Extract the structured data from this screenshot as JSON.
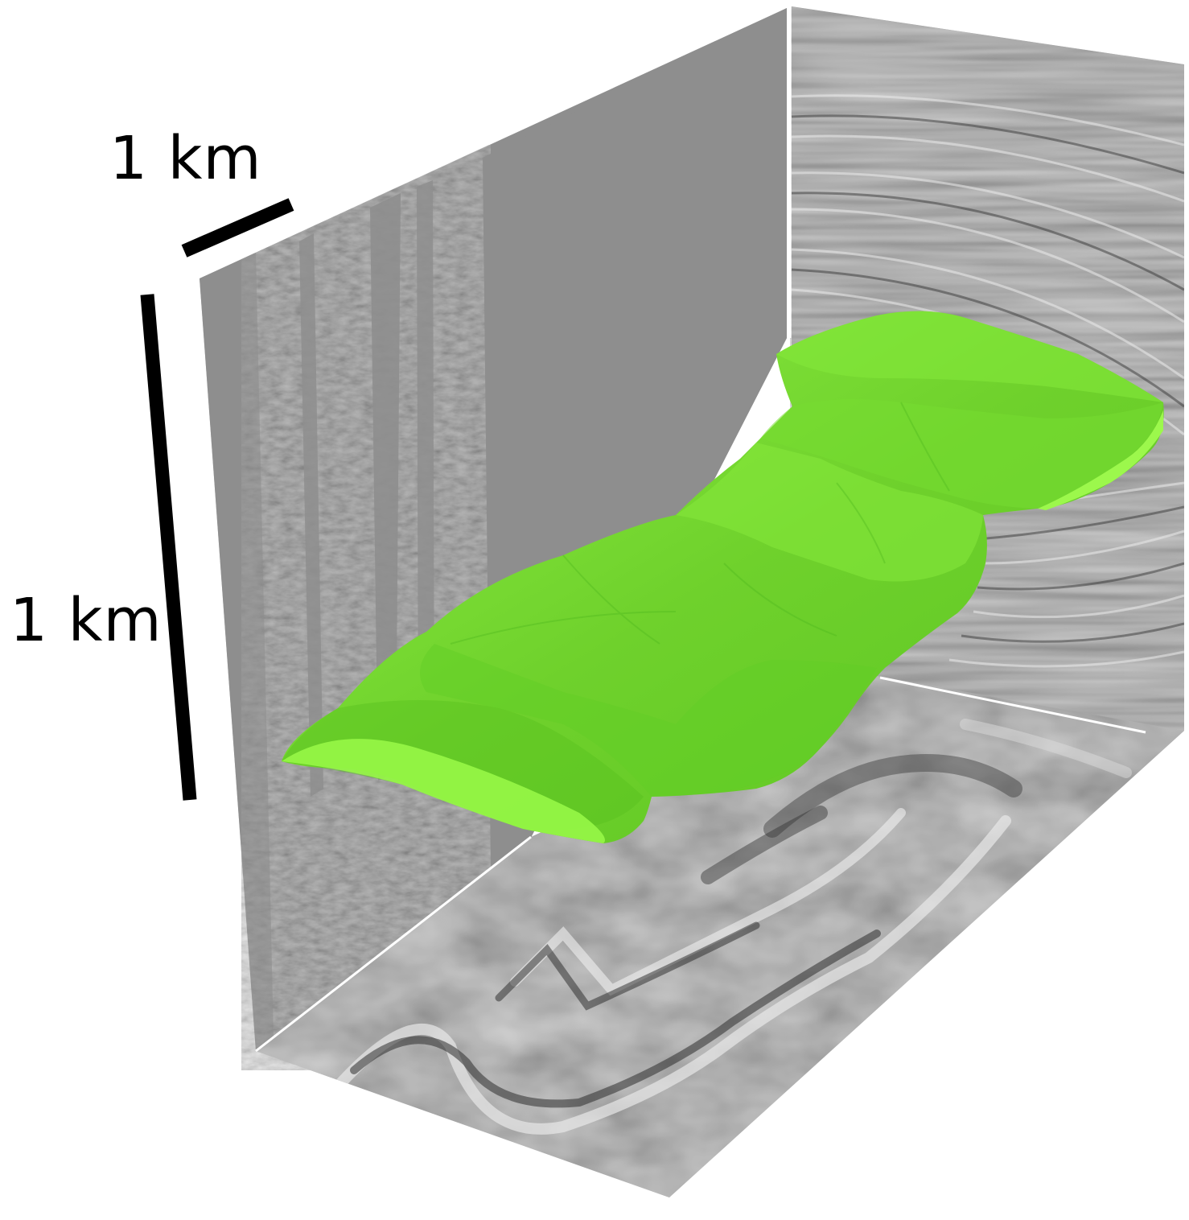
{
  "scale_bars": {
    "horizontal_label": "1 km",
    "vertical_label": "1 km"
  },
  "colors": {
    "body": "#7fe238",
    "body_light": "#94f545",
    "body_dark": "#4cb81d",
    "panel_gray": "#8e8e8e",
    "edge_white": "#ffffff",
    "scale_bar": "#000000"
  }
}
